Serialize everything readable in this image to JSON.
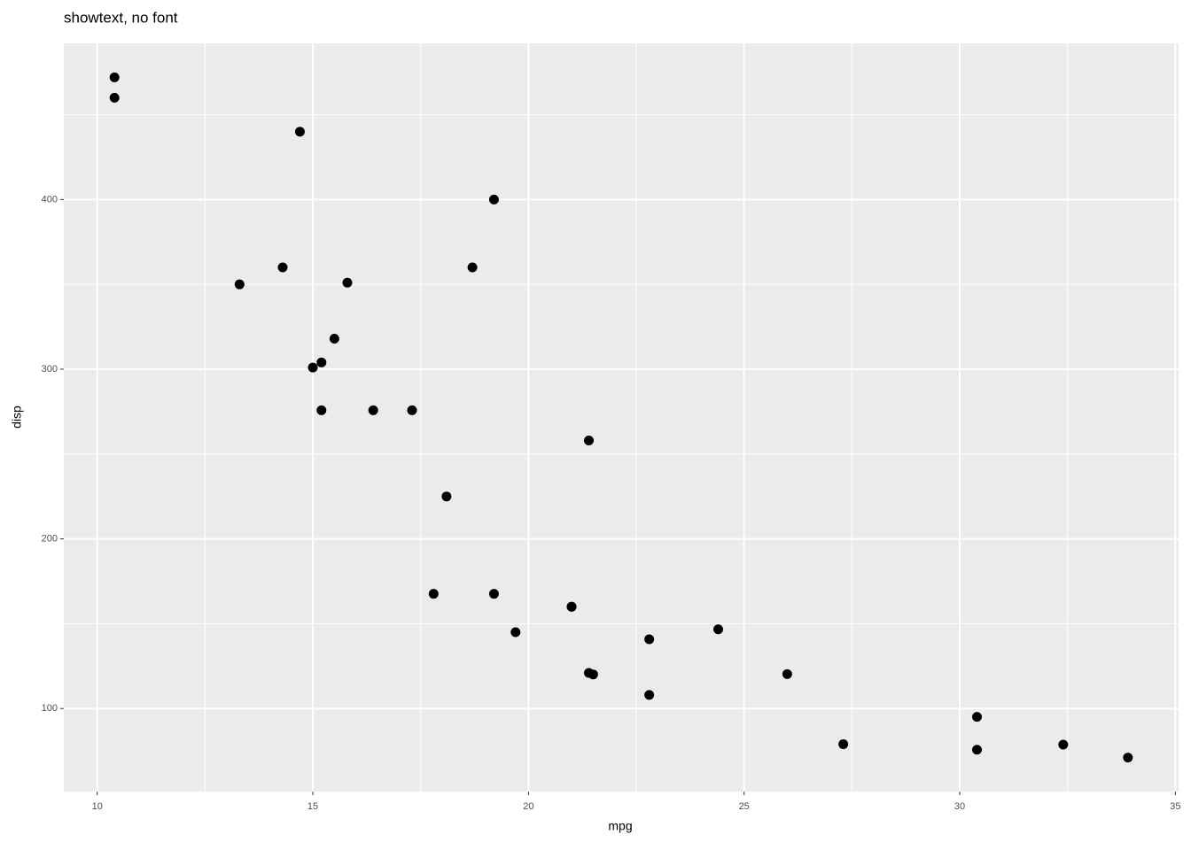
{
  "chart_data": {
    "type": "scatter",
    "title": "showtext, no font",
    "x_label": "mpg",
    "y_label": "disp",
    "x": [
      21.0,
      21.0,
      22.8,
      21.4,
      18.7,
      18.1,
      14.3,
      24.4,
      22.8,
      19.2,
      17.8,
      16.4,
      17.3,
      15.2,
      10.4,
      10.4,
      14.7,
      32.4,
      30.4,
      33.9,
      21.5,
      15.5,
      15.2,
      13.3,
      19.2,
      27.3,
      26.0,
      30.4,
      15.8,
      19.7,
      15.0,
      21.4
    ],
    "values": [
      160,
      160,
      108,
      258,
      360,
      225,
      360,
      146.7,
      140.8,
      167.6,
      167.6,
      275.8,
      275.8,
      275.8,
      472,
      460,
      440,
      78.7,
      75.7,
      71.1,
      120.1,
      318,
      304,
      350,
      400,
      79,
      120.3,
      95.1,
      351,
      145,
      301,
      121
    ],
    "color": "#000000",
    "xlim": [
      9.225,
      35.075
    ],
    "ylim": [
      51.055,
      492.045
    ],
    "xticks": [
      10,
      15,
      20,
      25,
      30,
      35
    ],
    "yticks": [
      100,
      200,
      300,
      400
    ],
    "grid": true
  }
}
